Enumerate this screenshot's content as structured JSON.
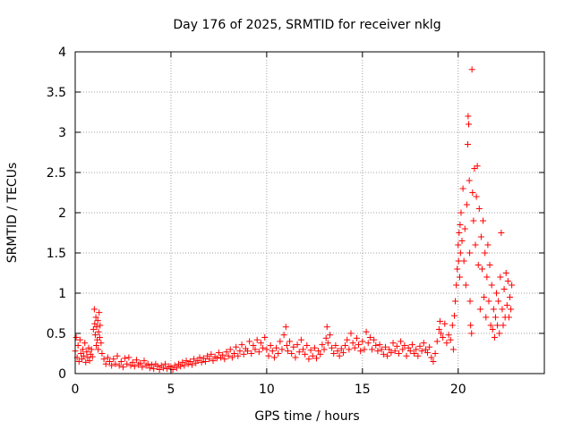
{
  "chart_data": {
    "type": "scatter",
    "title": "Day 176 of 2025, SRMTID for receiver nklg",
    "xlabel": "GPS time / hours",
    "ylabel": "SRMTID / TECUs",
    "xlim": [
      0,
      24.5
    ],
    "ylim": [
      0,
      4
    ],
    "x_ticks": [
      0,
      5,
      10,
      15,
      20
    ],
    "x_tick_labels": [
      "0",
      "5",
      "10",
      "15",
      "20"
    ],
    "y_ticks": [
      0,
      0.5,
      1,
      1.5,
      2,
      2.5,
      3,
      3.5,
      4
    ],
    "y_tick_labels": [
      "0",
      "0.5",
      "1",
      "1.5",
      "2",
      "2.5",
      "3",
      "3.5",
      "4"
    ],
    "grid": true,
    "marker": "+",
    "color": "#ff0000",
    "series": [
      {
        "name": "SRMTID",
        "points": [
          [
            0.0,
            0.28
          ],
          [
            0.05,
            0.45
          ],
          [
            0.1,
            0.2
          ],
          [
            0.15,
            0.35
          ],
          [
            0.2,
            0.15
          ],
          [
            0.25,
            0.42
          ],
          [
            0.3,
            0.25
          ],
          [
            0.35,
            0.18
          ],
          [
            0.4,
            0.3
          ],
          [
            0.45,
            0.22
          ],
          [
            0.5,
            0.38
          ],
          [
            0.55,
            0.14
          ],
          [
            0.6,
            0.27
          ],
          [
            0.65,
            0.2
          ],
          [
            0.7,
            0.32
          ],
          [
            0.75,
            0.16
          ],
          [
            0.8,
            0.24
          ],
          [
            0.85,
            0.3
          ],
          [
            0.9,
            0.21
          ],
          [
            0.95,
            0.55
          ],
          [
            1.0,
            0.8
          ],
          [
            1.02,
            0.62
          ],
          [
            1.05,
            0.48
          ],
          [
            1.08,
            0.7
          ],
          [
            1.1,
            0.35
          ],
          [
            1.12,
            0.58
          ],
          [
            1.15,
            0.42
          ],
          [
            1.18,
            0.66
          ],
          [
            1.2,
            0.3
          ],
          [
            1.22,
            0.52
          ],
          [
            1.25,
            0.76
          ],
          [
            1.28,
            0.45
          ],
          [
            1.3,
            0.6
          ],
          [
            1.35,
            0.38
          ],
          [
            1.4,
            0.25
          ],
          [
            1.5,
            0.18
          ],
          [
            1.6,
            0.12
          ],
          [
            1.7,
            0.2
          ],
          [
            1.8,
            0.15
          ],
          [
            1.9,
            0.1
          ],
          [
            2.0,
            0.18
          ],
          [
            2.1,
            0.12
          ],
          [
            2.2,
            0.22
          ],
          [
            2.3,
            0.1
          ],
          [
            2.4,
            0.15
          ],
          [
            2.5,
            0.08
          ],
          [
            2.6,
            0.19
          ],
          [
            2.7,
            0.12
          ],
          [
            2.8,
            0.2
          ],
          [
            2.9,
            0.1
          ],
          [
            3.0,
            0.14
          ],
          [
            3.1,
            0.09
          ],
          [
            3.2,
            0.17
          ],
          [
            3.3,
            0.11
          ],
          [
            3.4,
            0.13
          ],
          [
            3.5,
            0.08
          ],
          [
            3.6,
            0.16
          ],
          [
            3.7,
            0.1
          ],
          [
            3.8,
            0.12
          ],
          [
            3.9,
            0.07
          ],
          [
            4.0,
            0.11
          ],
          [
            4.1,
            0.06
          ],
          [
            4.2,
            0.12
          ],
          [
            4.3,
            0.09
          ],
          [
            4.4,
            0.05
          ],
          [
            4.5,
            0.1
          ],
          [
            4.6,
            0.07
          ],
          [
            4.7,
            0.12
          ],
          [
            4.8,
            0.06
          ],
          [
            4.9,
            0.09
          ],
          [
            5.0,
            0.08
          ],
          [
            5.1,
            0.05
          ],
          [
            5.2,
            0.1
          ],
          [
            5.3,
            0.07
          ],
          [
            5.4,
            0.12
          ],
          [
            5.5,
            0.09
          ],
          [
            5.6,
            0.14
          ],
          [
            5.7,
            0.1
          ],
          [
            5.8,
            0.16
          ],
          [
            5.9,
            0.12
          ],
          [
            6.0,
            0.15
          ],
          [
            6.1,
            0.11
          ],
          [
            6.2,
            0.18
          ],
          [
            6.3,
            0.13
          ],
          [
            6.4,
            0.16
          ],
          [
            6.5,
            0.2
          ],
          [
            6.6,
            0.14
          ],
          [
            6.7,
            0.19
          ],
          [
            6.8,
            0.15
          ],
          [
            6.9,
            0.22
          ],
          [
            7.0,
            0.18
          ],
          [
            7.1,
            0.24
          ],
          [
            7.2,
            0.16
          ],
          [
            7.3,
            0.21
          ],
          [
            7.4,
            0.19
          ],
          [
            7.5,
            0.26
          ],
          [
            7.6,
            0.2
          ],
          [
            7.7,
            0.23
          ],
          [
            7.8,
            0.18
          ],
          [
            7.9,
            0.27
          ],
          [
            8.0,
            0.22
          ],
          [
            8.1,
            0.3
          ],
          [
            8.2,
            0.2
          ],
          [
            8.3,
            0.25
          ],
          [
            8.4,
            0.33
          ],
          [
            8.5,
            0.22
          ],
          [
            8.6,
            0.28
          ],
          [
            8.7,
            0.36
          ],
          [
            8.8,
            0.24
          ],
          [
            8.9,
            0.31
          ],
          [
            9.0,
            0.28
          ],
          [
            9.1,
            0.4
          ],
          [
            9.2,
            0.25
          ],
          [
            9.3,
            0.35
          ],
          [
            9.4,
            0.3
          ],
          [
            9.5,
            0.42
          ],
          [
            9.6,
            0.27
          ],
          [
            9.7,
            0.38
          ],
          [
            9.8,
            0.32
          ],
          [
            9.9,
            0.45
          ],
          [
            10.0,
            0.3
          ],
          [
            10.1,
            0.22
          ],
          [
            10.2,
            0.35
          ],
          [
            10.3,
            0.28
          ],
          [
            10.4,
            0.2
          ],
          [
            10.5,
            0.32
          ],
          [
            10.6,
            0.25
          ],
          [
            10.7,
            0.4
          ],
          [
            10.8,
            0.3
          ],
          [
            10.9,
            0.48
          ],
          [
            11.0,
            0.58
          ],
          [
            11.05,
            0.35
          ],
          [
            11.1,
            0.28
          ],
          [
            11.2,
            0.4
          ],
          [
            11.3,
            0.25
          ],
          [
            11.4,
            0.33
          ],
          [
            11.5,
            0.2
          ],
          [
            11.6,
            0.36
          ],
          [
            11.7,
            0.27
          ],
          [
            11.8,
            0.42
          ],
          [
            11.9,
            0.3
          ],
          [
            12.0,
            0.24
          ],
          [
            12.1,
            0.35
          ],
          [
            12.2,
            0.18
          ],
          [
            12.3,
            0.29
          ],
          [
            12.4,
            0.22
          ],
          [
            12.5,
            0.32
          ],
          [
            12.6,
            0.19
          ],
          [
            12.7,
            0.28
          ],
          [
            12.8,
            0.24
          ],
          [
            12.9,
            0.36
          ],
          [
            13.0,
            0.3
          ],
          [
            13.1,
            0.44
          ],
          [
            13.15,
            0.58
          ],
          [
            13.2,
            0.38
          ],
          [
            13.3,
            0.48
          ],
          [
            13.4,
            0.32
          ],
          [
            13.5,
            0.25
          ],
          [
            13.6,
            0.35
          ],
          [
            13.7,
            0.28
          ],
          [
            13.8,
            0.22
          ],
          [
            13.9,
            0.31
          ],
          [
            14.0,
            0.26
          ],
          [
            14.1,
            0.35
          ],
          [
            14.2,
            0.42
          ],
          [
            14.3,
            0.3
          ],
          [
            14.4,
            0.5
          ],
          [
            14.5,
            0.38
          ],
          [
            14.6,
            0.32
          ],
          [
            14.7,
            0.44
          ],
          [
            14.8,
            0.36
          ],
          [
            14.9,
            0.28
          ],
          [
            15.0,
            0.4
          ],
          [
            15.1,
            0.3
          ],
          [
            15.2,
            0.52
          ],
          [
            15.3,
            0.38
          ],
          [
            15.4,
            0.45
          ],
          [
            15.5,
            0.3
          ],
          [
            15.6,
            0.42
          ],
          [
            15.7,
            0.35
          ],
          [
            15.8,
            0.28
          ],
          [
            15.9,
            0.36
          ],
          [
            16.0,
            0.3
          ],
          [
            16.1,
            0.24
          ],
          [
            16.2,
            0.33
          ],
          [
            16.3,
            0.22
          ],
          [
            16.4,
            0.3
          ],
          [
            16.5,
            0.26
          ],
          [
            16.6,
            0.38
          ],
          [
            16.7,
            0.28
          ],
          [
            16.8,
            0.34
          ],
          [
            16.9,
            0.25
          ],
          [
            17.0,
            0.4
          ],
          [
            17.1,
            0.3
          ],
          [
            17.2,
            0.35
          ],
          [
            17.3,
            0.22
          ],
          [
            17.4,
            0.32
          ],
          [
            17.5,
            0.28
          ],
          [
            17.6,
            0.36
          ],
          [
            17.7,
            0.25
          ],
          [
            17.8,
            0.3
          ],
          [
            17.9,
            0.22
          ],
          [
            18.0,
            0.34
          ],
          [
            18.1,
            0.28
          ],
          [
            18.2,
            0.38
          ],
          [
            18.3,
            0.3
          ],
          [
            18.4,
            0.26
          ],
          [
            18.5,
            0.33
          ],
          [
            18.6,
            0.2
          ],
          [
            18.7,
            0.15
          ],
          [
            18.8,
            0.25
          ],
          [
            18.9,
            0.4
          ],
          [
            19.0,
            0.55
          ],
          [
            19.05,
            0.65
          ],
          [
            19.1,
            0.5
          ],
          [
            19.2,
            0.45
          ],
          [
            19.3,
            0.62
          ],
          [
            19.4,
            0.38
          ],
          [
            19.5,
            0.48
          ],
          [
            19.6,
            0.42
          ],
          [
            19.7,
            0.6
          ],
          [
            19.75,
            0.3
          ],
          [
            19.8,
            0.72
          ],
          [
            19.85,
            0.9
          ],
          [
            19.9,
            1.1
          ],
          [
            19.95,
            1.3
          ],
          [
            20.0,
            1.6
          ],
          [
            20.02,
            1.4
          ],
          [
            20.05,
            1.75
          ],
          [
            20.08,
            1.2
          ],
          [
            20.1,
            1.85
          ],
          [
            20.12,
            1.5
          ],
          [
            20.15,
            2.0
          ],
          [
            20.2,
            1.65
          ],
          [
            20.25,
            2.3
          ],
          [
            20.3,
            1.4
          ],
          [
            20.35,
            1.8
          ],
          [
            20.4,
            1.1
          ],
          [
            20.45,
            2.1
          ],
          [
            20.5,
            2.85
          ],
          [
            20.52,
            3.2
          ],
          [
            20.55,
            3.1
          ],
          [
            20.58,
            2.4
          ],
          [
            20.6,
            1.5
          ],
          [
            20.62,
            0.9
          ],
          [
            20.65,
            0.6
          ],
          [
            20.7,
            0.5
          ],
          [
            20.72,
            3.78
          ],
          [
            20.75,
            2.25
          ],
          [
            20.8,
            1.9
          ],
          [
            20.85,
            2.55
          ],
          [
            20.9,
            1.6
          ],
          [
            20.95,
            2.2
          ],
          [
            21.0,
            2.58
          ],
          [
            21.05,
            1.35
          ],
          [
            21.1,
            2.05
          ],
          [
            21.15,
            0.8
          ],
          [
            21.2,
            1.7
          ],
          [
            21.25,
            1.3
          ],
          [
            21.3,
            1.9
          ],
          [
            21.35,
            0.95
          ],
          [
            21.4,
            1.5
          ],
          [
            21.45,
            0.7
          ],
          [
            21.5,
            1.2
          ],
          [
            21.55,
            1.6
          ],
          [
            21.6,
            0.9
          ],
          [
            21.65,
            1.35
          ],
          [
            21.7,
            0.6
          ],
          [
            21.75,
            1.1
          ],
          [
            21.8,
            0.55
          ],
          [
            21.85,
            0.8
          ],
          [
            21.9,
            0.45
          ],
          [
            21.95,
            0.7
          ],
          [
            22.0,
            1.0
          ],
          [
            22.05,
            0.6
          ],
          [
            22.1,
            0.9
          ],
          [
            22.15,
            0.5
          ],
          [
            22.2,
            1.2
          ],
          [
            22.25,
            1.75
          ],
          [
            22.3,
            0.8
          ],
          [
            22.35,
            0.6
          ],
          [
            22.4,
            1.05
          ],
          [
            22.45,
            0.7
          ],
          [
            22.5,
            1.25
          ],
          [
            22.55,
            0.85
          ],
          [
            22.6,
            1.15
          ],
          [
            22.65,
            0.7
          ],
          [
            22.7,
            0.95
          ],
          [
            22.75,
            0.8
          ],
          [
            22.8,
            1.1
          ]
        ]
      }
    ]
  }
}
